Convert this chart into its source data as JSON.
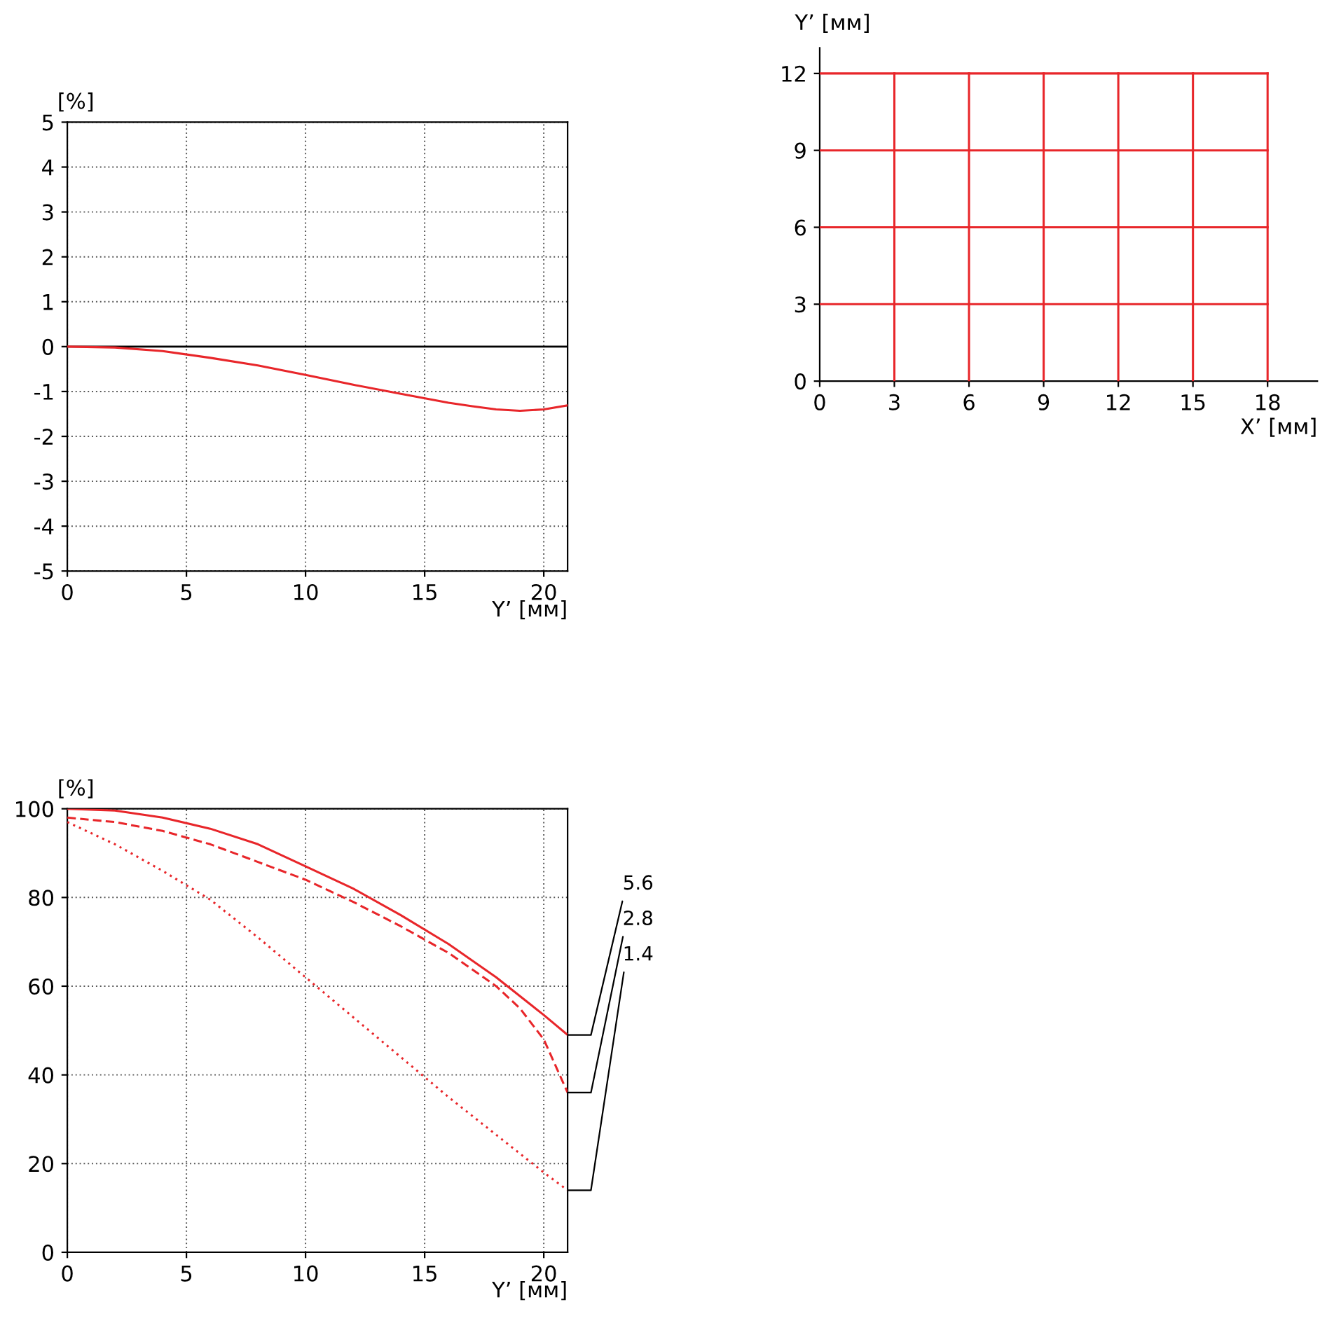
{
  "chart_data": [
    {
      "type": "line",
      "ylabel": "[%]",
      "xlabel": "Y’ [мм]",
      "xlim": [
        0,
        21
      ],
      "ylim": [
        -5,
        5
      ],
      "xticks": [
        0,
        5,
        10,
        15,
        20
      ],
      "yticks": [
        -5,
        -4,
        -3,
        -2,
        -1,
        0,
        1,
        2,
        3,
        4,
        5
      ],
      "grid": true,
      "legend": false,
      "ref_lines": [
        {
          "axis": "y",
          "value": 0,
          "color": "#000000",
          "line_style": "solid"
        }
      ],
      "x": [
        0,
        2,
        4,
        6,
        8,
        10,
        12,
        14,
        16,
        17,
        18,
        19,
        20,
        21
      ],
      "series": [
        {
          "color": "#e8262a",
          "line_style": "solid",
          "values": [
            0,
            -0.02,
            -0.1,
            -0.25,
            -0.42,
            -0.63,
            -0.85,
            -1.05,
            -1.25,
            -1.33,
            -1.4,
            -1.43,
            -1.4,
            -1.31
          ]
        }
      ]
    },
    {
      "type": "line",
      "ylabel": "Y’ [мм]",
      "xlabel": "X’ [мм]",
      "xlim": [
        0,
        20
      ],
      "ylim": [
        0,
        13
      ],
      "xticks": [
        0,
        3,
        6,
        9,
        12,
        15,
        18
      ],
      "yticks": [
        0,
        3,
        6,
        9,
        12
      ],
      "grid": false,
      "legend": false,
      "series": [
        {
          "color": "#e8262a",
          "line_style": "solid",
          "x": [
            0,
            18
          ],
          "values": [
            3,
            3
          ]
        },
        {
          "color": "#e8262a",
          "line_style": "solid",
          "x": [
            0,
            18
          ],
          "values": [
            6,
            6
          ]
        },
        {
          "color": "#e8262a",
          "line_style": "solid",
          "x": [
            0,
            18
          ],
          "values": [
            9,
            9
          ]
        },
        {
          "color": "#e8262a",
          "line_style": "solid",
          "x": [
            0,
            18
          ],
          "values": [
            12,
            12
          ]
        },
        {
          "color": "#e8262a",
          "line_style": "solid",
          "x": [
            3,
            3
          ],
          "values": [
            0,
            12
          ]
        },
        {
          "color": "#e8262a",
          "line_style": "solid",
          "x": [
            6,
            6
          ],
          "values": [
            0,
            12
          ]
        },
        {
          "color": "#e8262a",
          "line_style": "solid",
          "x": [
            9,
            9
          ],
          "values": [
            0,
            12
          ]
        },
        {
          "color": "#e8262a",
          "line_style": "solid",
          "x": [
            12,
            12
          ],
          "values": [
            0,
            12
          ]
        },
        {
          "color": "#e8262a",
          "line_style": "solid",
          "x": [
            15,
            15
          ],
          "values": [
            0,
            12
          ]
        },
        {
          "color": "#e8262a",
          "line_style": "solid",
          "x": [
            18,
            18
          ],
          "values": [
            0,
            12
          ]
        }
      ]
    },
    {
      "type": "line",
      "ylabel": "[%]",
      "xlabel": "Y’ [мм]",
      "xlim": [
        0,
        21
      ],
      "ylim": [
        0,
        100
      ],
      "xticks": [
        0,
        5,
        10,
        15,
        20
      ],
      "yticks": [
        0,
        20,
        40,
        60,
        80,
        100
      ],
      "grid": true,
      "legend": false,
      "series": [
        {
          "name": "5.6",
          "color": "#e8262a",
          "line_style": "solid",
          "x": [
            0,
            2,
            4,
            6,
            8,
            10,
            12,
            14,
            16,
            18,
            20,
            21
          ],
          "values": [
            100,
            99.6,
            98,
            95.5,
            92,
            87,
            82,
            76,
            69.5,
            62,
            53.5,
            49
          ]
        },
        {
          "name": "2.8",
          "color": "#e8262a",
          "line_style": "dashed",
          "x": [
            0,
            2,
            4,
            6,
            8,
            10,
            12,
            14,
            16,
            18,
            19,
            20,
            21
          ],
          "values": [
            98,
            97,
            95,
            92,
            88,
            84,
            79,
            73.5,
            67.5,
            60,
            55,
            48,
            36
          ]
        },
        {
          "name": "1.4",
          "color": "#e8262a",
          "line_style": "dotted",
          "x": [
            0,
            2,
            4,
            6,
            8,
            10,
            12,
            14,
            16,
            18,
            20,
            21
          ],
          "values": [
            97,
            92,
            86,
            79.5,
            71,
            62,
            53,
            44,
            35,
            26.5,
            18,
            14
          ]
        }
      ]
    }
  ]
}
